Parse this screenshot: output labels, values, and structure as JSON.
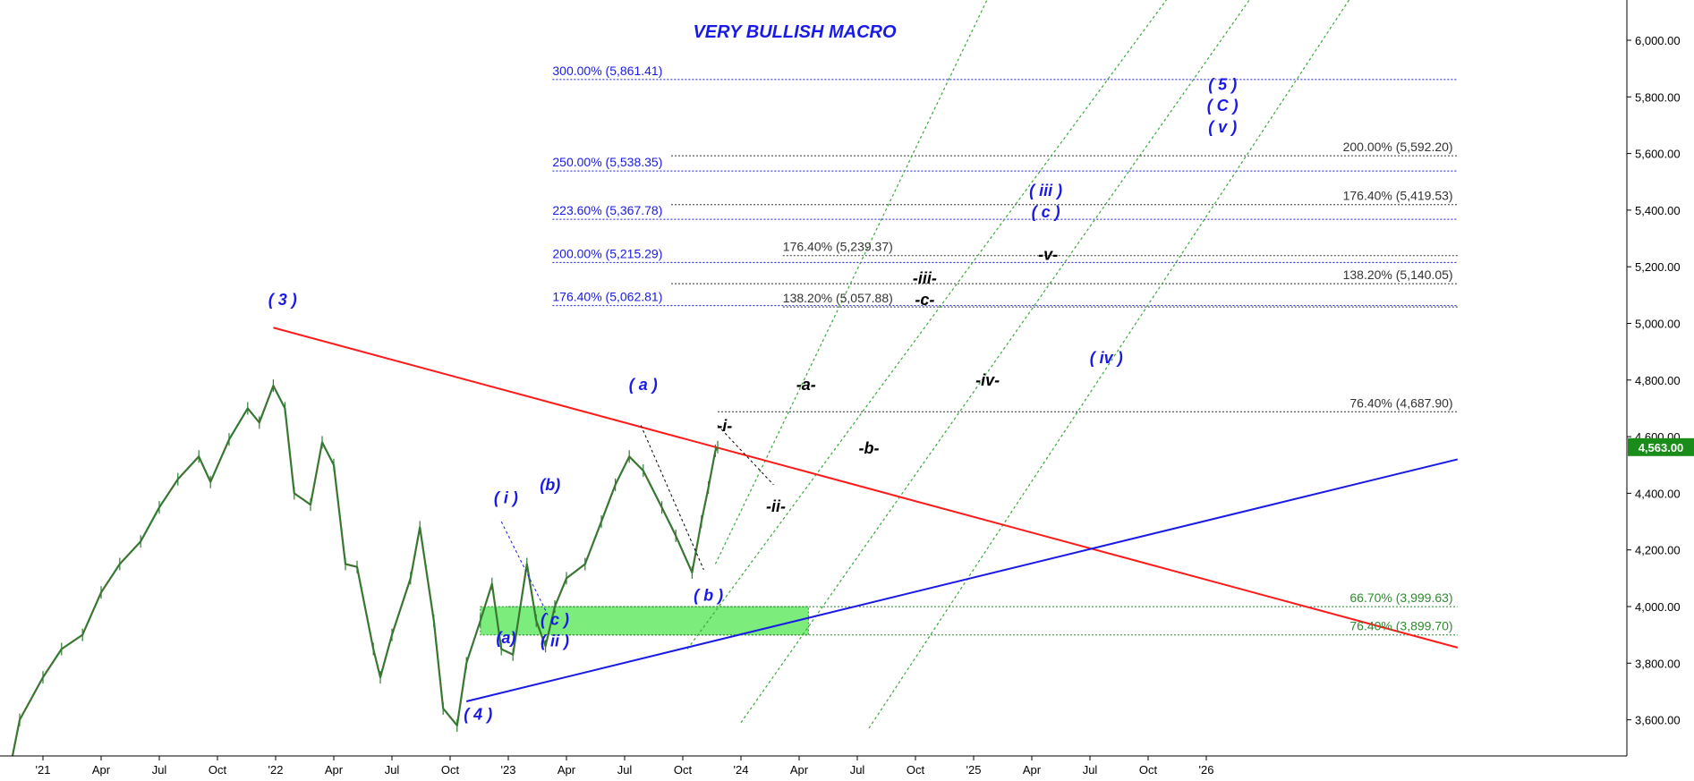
{
  "chart_data": {
    "type": "line",
    "title": "VERY BULLISH MACRO",
    "ylim": [
      3460,
      6180
    ],
    "y_ticks": [
      3600,
      3800,
      4000,
      4200,
      4400,
      4600,
      4800,
      5000,
      5200,
      5400,
      5600,
      5800,
      6000
    ],
    "y_tick_labels": [
      "3,600.00",
      "3,800.00",
      "4,000.00",
      "4,200.00",
      "4,400.00",
      "4,600.00",
      "4,800.00",
      "5,000.00",
      "5,200.00",
      "5,400.00",
      "5,600.00",
      "5,800.00",
      "6,000.00"
    ],
    "x_ticks": [
      {
        "label": "'21",
        "x": 2021.0
      },
      {
        "label": "Apr",
        "x": 2021.25
      },
      {
        "label": "Jul",
        "x": 2021.5
      },
      {
        "label": "Oct",
        "x": 2021.75
      },
      {
        "label": "'22",
        "x": 2022.0
      },
      {
        "label": "Apr",
        "x": 2022.25
      },
      {
        "label": "Jul",
        "x": 2022.5
      },
      {
        "label": "Oct",
        "x": 2022.75
      },
      {
        "label": "'23",
        "x": 2023.0
      },
      {
        "label": "Apr",
        "x": 2023.25
      },
      {
        "label": "Jul",
        "x": 2023.5
      },
      {
        "label": "Oct",
        "x": 2023.75
      },
      {
        "label": "'24",
        "x": 2024.0
      },
      {
        "label": "Apr",
        "x": 2024.25
      },
      {
        "label": "Jul",
        "x": 2024.5
      },
      {
        "label": "Oct",
        "x": 2024.75
      },
      {
        "label": "'25",
        "x": 2025.0
      },
      {
        "label": "Apr",
        "x": 2025.25
      },
      {
        "label": "Jul",
        "x": 2025.5
      },
      {
        "label": "Oct",
        "x": 2025.75
      },
      {
        "label": "'26",
        "x": 2026.0
      }
    ],
    "current_price": {
      "value": 4563,
      "label": "4,563.00",
      "color": "#1a8c1a"
    },
    "series": [
      {
        "color": "#2e7d32",
        "points": [
          [
            2020.82,
            3270
          ],
          [
            2020.9,
            3600
          ],
          [
            2021.0,
            3750
          ],
          [
            2021.08,
            3850
          ],
          [
            2021.17,
            3900
          ],
          [
            2021.25,
            4050
          ],
          [
            2021.33,
            4150
          ],
          [
            2021.42,
            4230
          ],
          [
            2021.5,
            4350
          ],
          [
            2021.58,
            4450
          ],
          [
            2021.67,
            4530
          ],
          [
            2021.72,
            4440
          ],
          [
            2021.8,
            4590
          ],
          [
            2021.88,
            4700
          ],
          [
            2021.93,
            4650
          ],
          [
            2021.99,
            4780
          ],
          [
            2022.04,
            4700
          ],
          [
            2022.08,
            4400
          ],
          [
            2022.15,
            4360
          ],
          [
            2022.2,
            4580
          ],
          [
            2022.25,
            4500
          ],
          [
            2022.3,
            4150
          ],
          [
            2022.35,
            4140
          ],
          [
            2022.42,
            3850
          ],
          [
            2022.45,
            3750
          ],
          [
            2022.5,
            3900
          ],
          [
            2022.58,
            4100
          ],
          [
            2022.62,
            4280
          ],
          [
            2022.68,
            3950
          ],
          [
            2022.72,
            3640
          ],
          [
            2022.78,
            3580
          ],
          [
            2022.82,
            3800
          ],
          [
            2022.88,
            3950
          ],
          [
            2022.93,
            4080
          ],
          [
            2022.97,
            3850
          ],
          [
            2023.02,
            3830
          ],
          [
            2023.08,
            4150
          ],
          [
            2023.12,
            3950
          ],
          [
            2023.16,
            3860
          ],
          [
            2023.2,
            4000
          ],
          [
            2023.25,
            4100
          ],
          [
            2023.33,
            4150
          ],
          [
            2023.4,
            4300
          ],
          [
            2023.46,
            4430
          ],
          [
            2023.52,
            4530
          ],
          [
            2023.58,
            4480
          ],
          [
            2023.66,
            4350
          ],
          [
            2023.72,
            4250
          ],
          [
            2023.79,
            4120
          ],
          [
            2023.83,
            4300
          ],
          [
            2023.86,
            4420
          ],
          [
            2023.89,
            4550
          ],
          [
            2023.9,
            4563
          ]
        ]
      }
    ],
    "trendlines": [
      {
        "color": "#ff1a1a",
        "from": [
          2021.99,
          4985
        ],
        "to": [
          2027.08,
          3855
        ]
      },
      {
        "color": "#1a1ae6",
        "from": [
          2022.82,
          3665
        ],
        "to": [
          2027.08,
          4520
        ]
      }
    ],
    "channel_lines": [
      {
        "color": "#3aa83a",
        "from": [
          2023.89,
          4150
        ],
        "to": [
          2025.15,
          6300
        ]
      },
      {
        "color": "#3aa83a",
        "from": [
          2023.77,
          3850
        ],
        "to": [
          2025.97,
          6300
        ]
      },
      {
        "color": "#3aa83a",
        "from": [
          2024.0,
          3590
        ],
        "to": [
          2026.32,
          6300
        ]
      },
      {
        "color": "#3aa83a",
        "from": [
          2024.55,
          3570
        ],
        "to": [
          2026.74,
          6300
        ]
      }
    ],
    "retracement_levels": [
      {
        "label": "300.00% (5,861.41)",
        "value": 5861.41,
        "color": "#1a1ae6",
        "x_start": 2023.19,
        "x_end": 2027.08,
        "label_x": 2023.19,
        "label_align": "left"
      },
      {
        "label": "250.00% (5,538.35)",
        "value": 5538.35,
        "color": "#1a1ae6",
        "x_start": 2023.19,
        "x_end": 2027.08,
        "label_x": 2023.19,
        "label_align": "left"
      },
      {
        "label": "223.60% (5,367.78)",
        "value": 5367.78,
        "color": "#1a1ae6",
        "x_start": 2023.19,
        "x_end": 2027.08,
        "label_x": 2023.19,
        "label_align": "left"
      },
      {
        "label": "200.00% (5,215.29)",
        "value": 5215.29,
        "color": "#1a1ae6",
        "x_start": 2023.19,
        "x_end": 2027.08,
        "label_x": 2023.19,
        "label_align": "left"
      },
      {
        "label": "176.40% (5,062.81)",
        "value": 5062.81,
        "color": "#1a1ae6",
        "x_start": 2023.19,
        "x_end": 2027.08,
        "label_x": 2023.19,
        "label_align": "left"
      },
      {
        "label": "200.00% (5,592.20)",
        "value": 5592.2,
        "color": "#333333",
        "x_start": 2023.7,
        "x_end": 2027.08,
        "label_x": 2027.06,
        "label_align": "right"
      },
      {
        "label": "176.40% (5,419.53)",
        "value": 5419.53,
        "color": "#333333",
        "x_start": 2023.7,
        "x_end": 2027.08,
        "label_x": 2027.06,
        "label_align": "right"
      },
      {
        "label": "138.20% (5,140.05)",
        "value": 5140.05,
        "color": "#333333",
        "x_start": 2023.7,
        "x_end": 2027.08,
        "label_x": 2027.06,
        "label_align": "right"
      },
      {
        "label": "176.40% (5,239.37)",
        "value": 5239.37,
        "color": "#333333",
        "x_start": 2024.18,
        "x_end": 2027.08,
        "label_x": 2024.18,
        "label_align": "left"
      },
      {
        "label": "138.20% (5,057.88)",
        "value": 5057.88,
        "color": "#333333",
        "x_start": 2024.18,
        "x_end": 2027.08,
        "label_x": 2024.18,
        "label_align": "left"
      },
      {
        "label": "76.40% (4,687.90)",
        "value": 4687.9,
        "color": "#333333",
        "x_start": 2023.9,
        "x_end": 2027.08,
        "label_x": 2027.06,
        "label_align": "right"
      },
      {
        "label": "66.70% (3,999.63)",
        "value": 3999.63,
        "color": "#2e8b2e",
        "x_start": 2023.0,
        "x_end": 2027.08,
        "label_x": 2027.06,
        "label_align": "right"
      },
      {
        "label": "76.40% (3,899.70)",
        "value": 3899.7,
        "color": "#2e8b2e",
        "x_start": 2023.0,
        "x_end": 2027.08,
        "label_x": 2027.06,
        "label_align": "right"
      }
    ],
    "zone": {
      "x_start": 2022.88,
      "x_end": 2024.29,
      "y_low": 3899.7,
      "y_high": 3999.63,
      "color": "#7ced7c"
    },
    "wave_paths": [
      {
        "color": "#1a1ae6",
        "points": [
          [
            2022.97,
            4300
          ],
          [
            2023.17,
            3970
          ]
        ]
      },
      {
        "color": "#000000",
        "points": [
          [
            2023.57,
            4640
          ],
          [
            2023.84,
            4130
          ]
        ]
      },
      {
        "color": "#000000",
        "points": [
          [
            2023.9,
            4640
          ],
          [
            2024.14,
            4430
          ]
        ]
      }
    ],
    "wave_labels": [
      {
        "text": "( 3 )",
        "x": 2022.03,
        "y": 5065,
        "color": "#1a1ae6"
      },
      {
        "text": "( 4 )",
        "x": 2022.87,
        "y": 3600,
        "color": "#1a1ae6"
      },
      {
        "text": "( i )",
        "x": 2022.99,
        "y": 4365,
        "color": "#1a1ae6"
      },
      {
        "text": "(b)",
        "x": 2023.18,
        "y": 4410,
        "color": "#1a1ae6"
      },
      {
        "text": "(a)",
        "x": 2022.99,
        "y": 3870,
        "color": "#1a1ae6"
      },
      {
        "text": "( c )",
        "x": 2023.2,
        "y": 3935,
        "color": "#1a1ae6"
      },
      {
        "text": "( ii )",
        "x": 2023.2,
        "y": 3860,
        "color": "#1a1ae6"
      },
      {
        "text": "( a )",
        "x": 2023.58,
        "y": 4765,
        "color": "#1a1ae6"
      },
      {
        "text": "( b )",
        "x": 2023.86,
        "y": 4020,
        "color": "#1a1ae6"
      },
      {
        "text": "( iv )",
        "x": 2025.57,
        "y": 4860,
        "color": "#1a1ae6"
      },
      {
        "text": "( iii )",
        "x": 2025.31,
        "y": 5450,
        "color": "#1a1ae6"
      },
      {
        "text": "( c )",
        "x": 2025.31,
        "y": 5375,
        "color": "#1a1ae6"
      },
      {
        "text": "( 5 )",
        "x": 2026.07,
        "y": 5825,
        "color": "#1a1ae6"
      },
      {
        "text": "( C )",
        "x": 2026.07,
        "y": 5750,
        "color": "#1a1ae6"
      },
      {
        "text": "( v )",
        "x": 2026.07,
        "y": 5675,
        "color": "#1a1ae6"
      },
      {
        "text": "-a-",
        "x": 2024.28,
        "y": 4765,
        "color": "#000000"
      },
      {
        "text": "-b-",
        "x": 2024.55,
        "y": 4540,
        "color": "#000000"
      },
      {
        "text": "-i-",
        "x": 2023.93,
        "y": 4620,
        "color": "#000000"
      },
      {
        "text": "-ii-",
        "x": 2024.15,
        "y": 4335,
        "color": "#000000"
      },
      {
        "text": "-iii-",
        "x": 2024.79,
        "y": 5140,
        "color": "#000000"
      },
      {
        "text": "-c-",
        "x": 2024.79,
        "y": 5065,
        "color": "#000000"
      },
      {
        "text": "-iv-",
        "x": 2025.06,
        "y": 4780,
        "color": "#000000"
      },
      {
        "text": "-v-",
        "x": 2025.32,
        "y": 5225,
        "color": "#000000"
      }
    ]
  }
}
